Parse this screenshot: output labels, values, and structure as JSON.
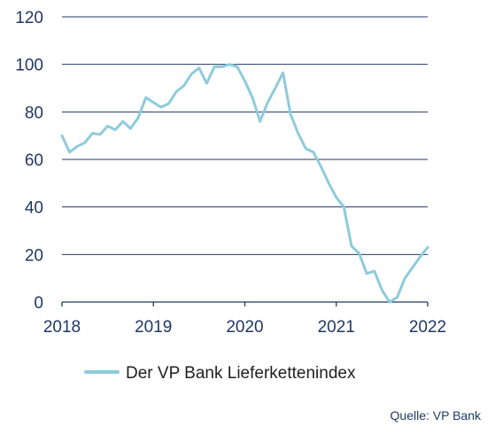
{
  "chart_data": {
    "type": "line",
    "title": "",
    "xlabel": "",
    "ylabel": "",
    "xlim": [
      2018,
      2022
    ],
    "ylim": [
      0,
      120
    ],
    "yticks": [
      0,
      20,
      40,
      60,
      80,
      100,
      120
    ],
    "xticks": [
      2018,
      2019,
      2020,
      2021,
      2022
    ],
    "ytick_labels": [
      "0",
      "20",
      "40",
      "60",
      "80",
      "100",
      "120"
    ],
    "xtick_labels": [
      "2018",
      "2019",
      "2020",
      "2021",
      "2022"
    ],
    "grid": "horizontal",
    "legend_position": "bottom-left",
    "series": [
      {
        "name": "Der VP Bank Lieferkettenindex",
        "color": "#8ecbdc",
        "x": [
          2018.0,
          2018.083,
          2018.167,
          2018.25,
          2018.333,
          2018.417,
          2018.5,
          2018.583,
          2018.667,
          2018.75,
          2018.833,
          2018.917,
          2019.0,
          2019.083,
          2019.167,
          2019.25,
          2019.333,
          2019.417,
          2019.5,
          2019.583,
          2019.667,
          2019.75,
          2019.833,
          2019.917,
          2020.0,
          2020.083,
          2020.167,
          2020.25,
          2020.333,
          2020.417,
          2020.5,
          2020.583,
          2020.667,
          2020.75,
          2020.833,
          2020.917,
          2021.0,
          2021.083,
          2021.167,
          2021.25,
          2021.333,
          2021.417,
          2021.5,
          2021.583,
          2021.667,
          2021.75,
          2021.833,
          2021.917,
          2022.0
        ],
        "values": [
          70,
          63,
          65.5,
          67,
          71,
          70.5,
          74,
          72.5,
          76,
          73,
          77.5,
          86,
          84,
          82,
          83.5,
          88.5,
          91,
          96,
          98.5,
          92,
          99,
          99,
          100,
          99,
          93,
          86,
          76,
          84,
          90,
          96.5,
          79,
          71,
          64.5,
          63,
          57,
          50,
          44,
          40,
          23.5,
          20.5,
          12,
          13,
          5,
          0,
          2,
          10,
          14.5,
          19,
          23
        ]
      }
    ]
  },
  "source": "Quelle: VP Bank"
}
